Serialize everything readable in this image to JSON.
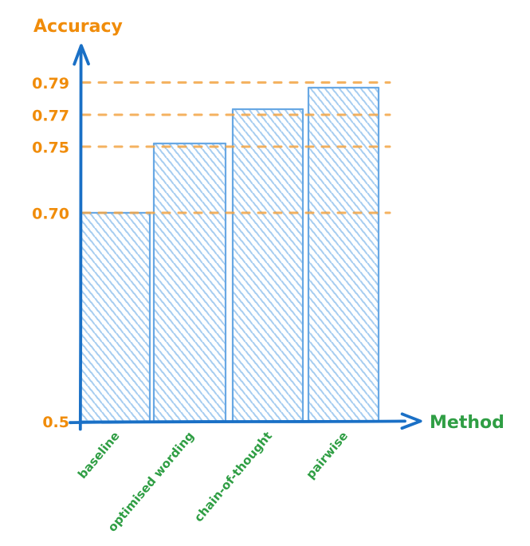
{
  "chart_data": {
    "type": "bar",
    "style": "hand-drawn sketch, hatched bars",
    "ylabel": "Accuracy",
    "xlabel": "Method",
    "categories": [
      "baseline",
      "optimised wording",
      "chain-of-thought",
      "pairwise"
    ],
    "values": [
      0.7,
      0.75,
      0.77,
      0.79
    ],
    "y_ticks": [
      "0.5",
      "0.70",
      "0.75",
      "0.77",
      "0.79"
    ],
    "ylim": [
      0.5,
      0.81
    ],
    "gridlines": {
      "style": "dashed",
      "orientation": "horizontal",
      "at": [
        "0.70",
        "0.75",
        "0.77",
        "0.79"
      ]
    },
    "legend": "none"
  },
  "colors": {
    "axis": "#1a70c6",
    "bar_outline": "#68a8e4",
    "bar_hatch": "#9dc8ef",
    "gridline": "#f2a444",
    "tick_text": "#f08c0a",
    "category_text": "#2f9e44",
    "background": "#ffffff"
  }
}
